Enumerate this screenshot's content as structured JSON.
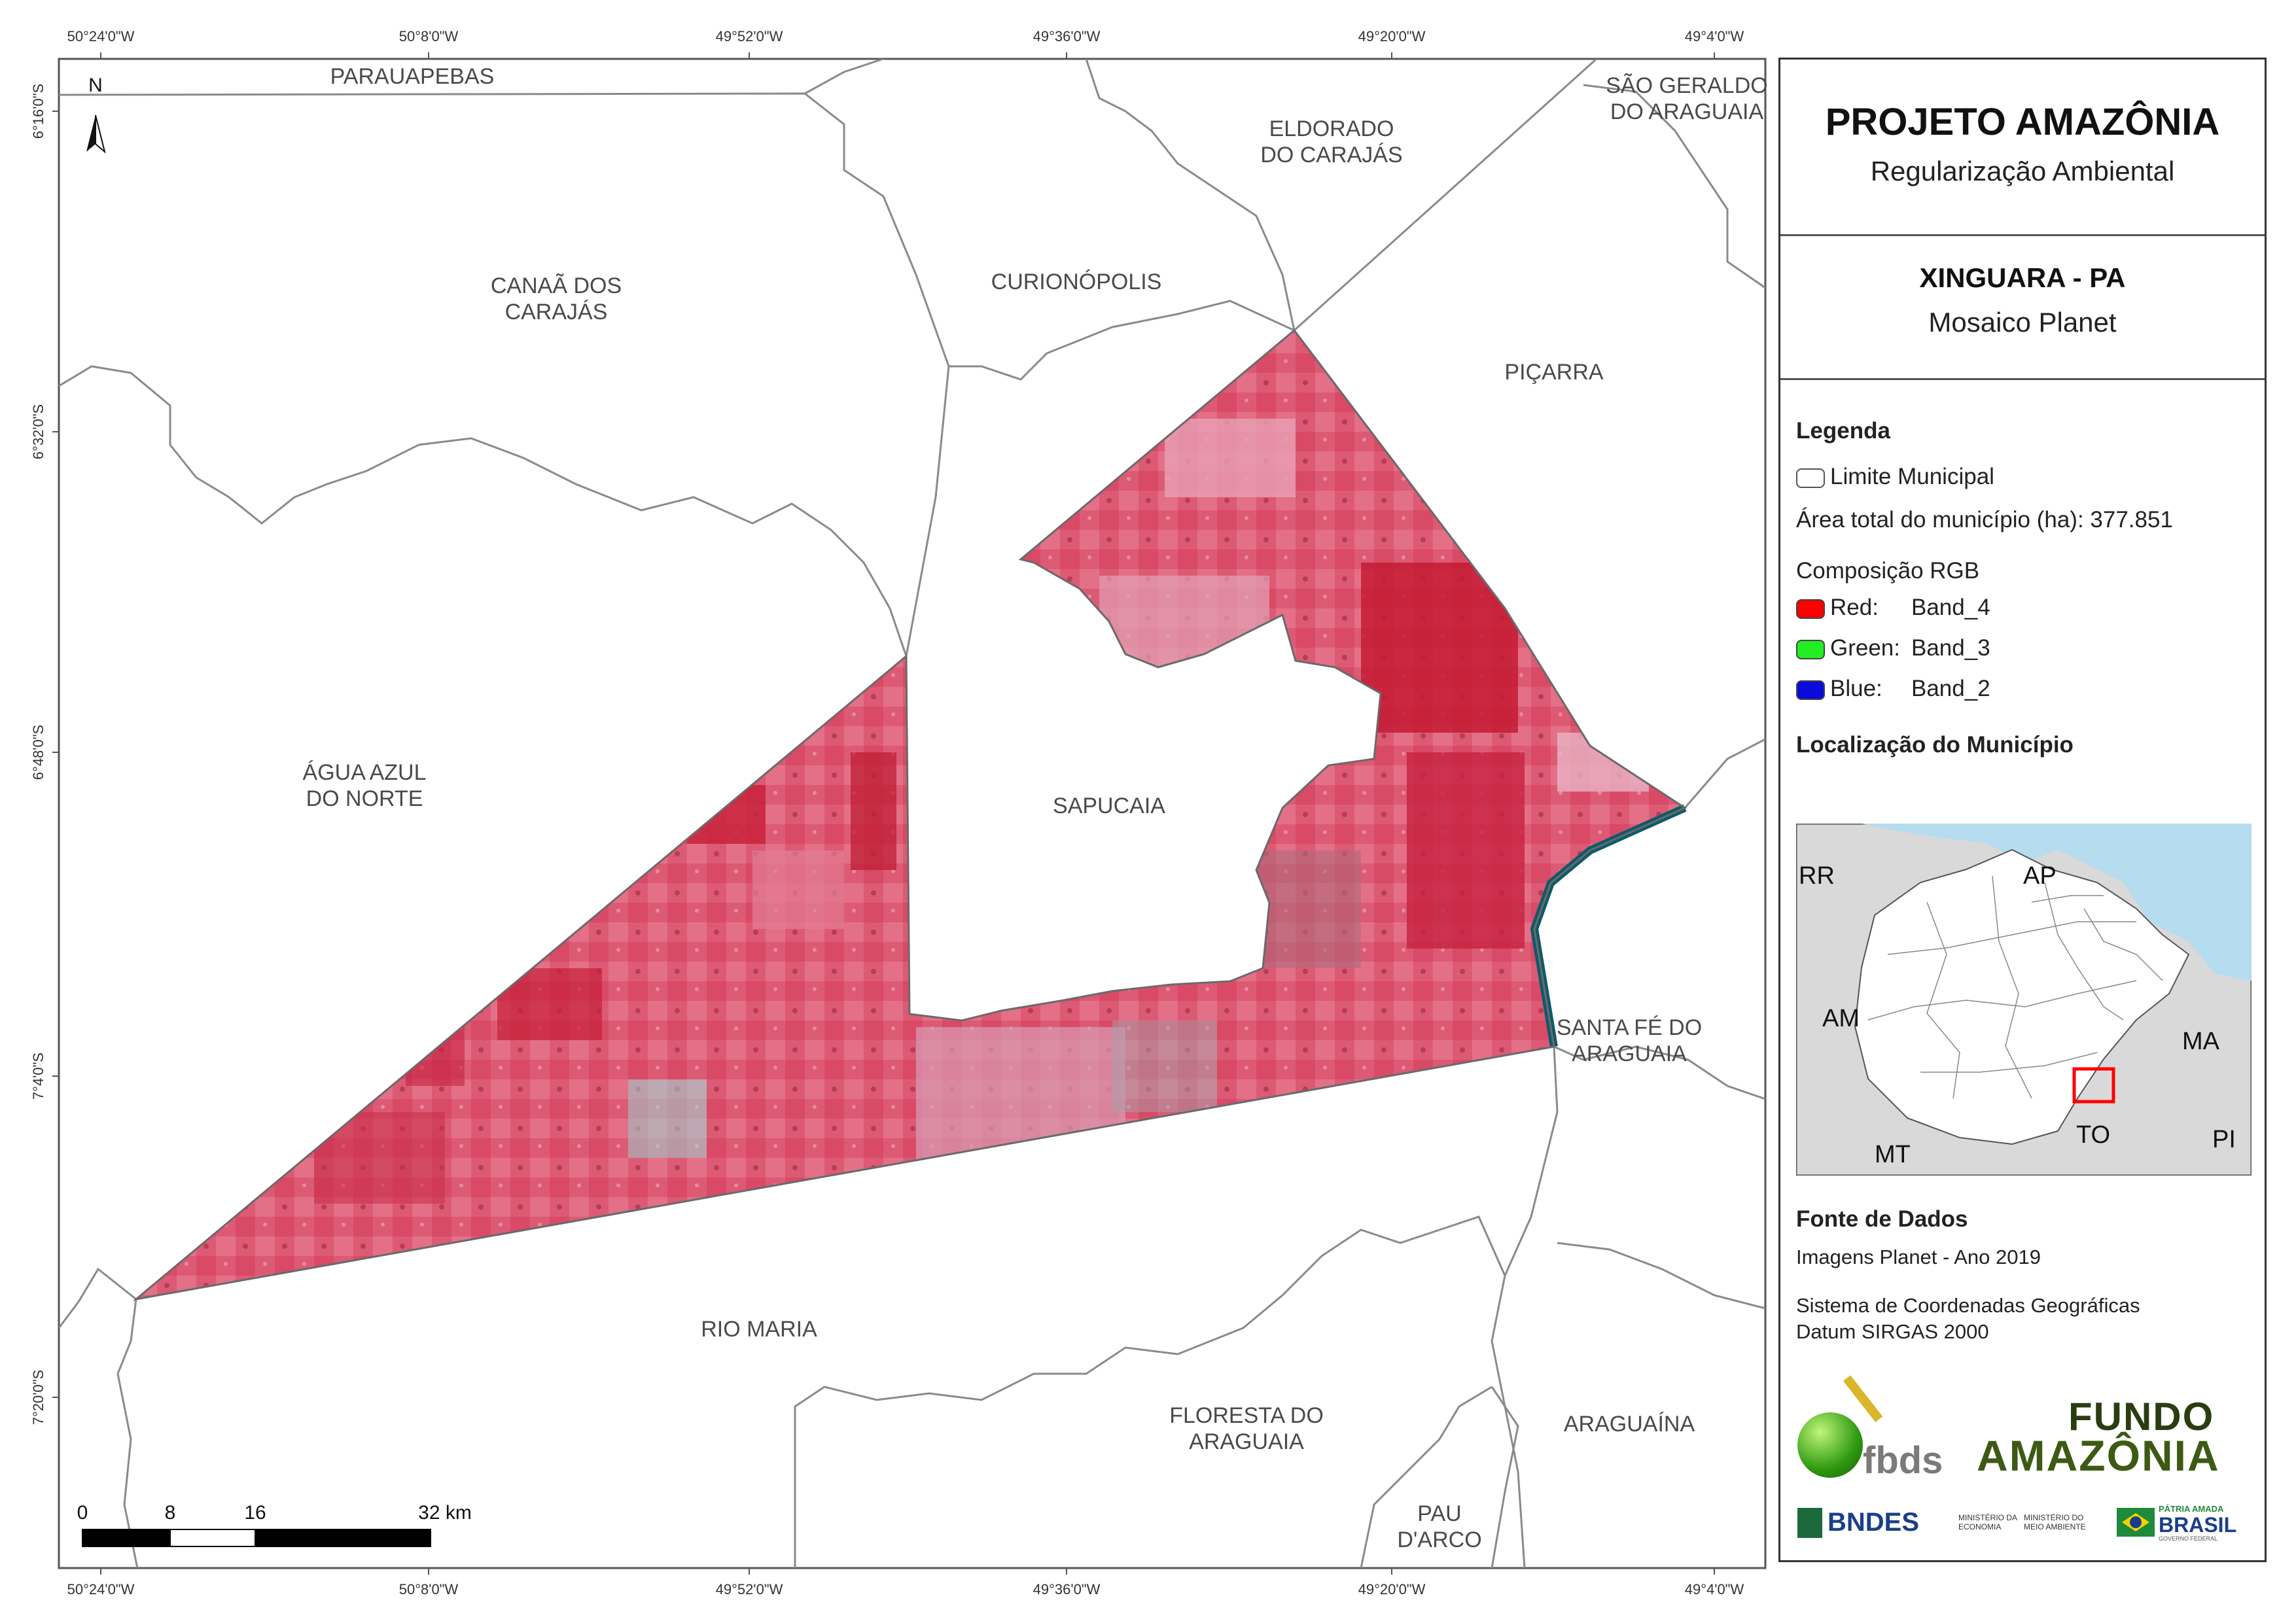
{
  "map": {
    "north_label": "N",
    "top_ticks": [
      "50°24'0\"W",
      "50°8'0\"W",
      "49°52'0\"W",
      "49°36'0\"W",
      "49°20'0\"W",
      "49°4'0\"W"
    ],
    "bottom_ticks": [
      "50°24'0\"W",
      "50°8'0\"W",
      "49°52'0\"W",
      "49°36'0\"W",
      "49°20'0\"W",
      "49°4'0\"W"
    ],
    "left_ticks": [
      "6°16'0\"S",
      "6°32'0\"S",
      "6°48'0\"S",
      "7°4'0\"S",
      "7°20'0\"S"
    ],
    "municipalities": {
      "parauapebas": "PARAUAPEBAS",
      "sao_geraldo_1": "SÃO GERALDO",
      "sao_geraldo_2": "DO ARAGUAIA",
      "eldorado_1": "ELDORADO",
      "eldorado_2": "DO CARAJÁS",
      "canaa_1": "CANAÃ DOS",
      "canaa_2": "CARAJÁS",
      "curionopolis": "CURIONÓPOLIS",
      "picarra": "PIÇARRA",
      "agua_azul_1": "ÁGUA AZUL",
      "agua_azul_2": "DO NORTE",
      "sapucaia": "SAPUCAIA",
      "santa_fe_1": "SANTA FÉ DO",
      "santa_fe_2": "ARAGUAIA",
      "rio_maria": "RIO MARIA",
      "floresta_1": "FLORESTA DO",
      "floresta_2": "ARAGUAIA",
      "araguaina": "ARAGUAÍNA",
      "pau_darco_1": "PAU",
      "pau_darco_2": "D'ARCO"
    },
    "scale": {
      "labels": [
        "0",
        "8",
        "16",
        "32 km"
      ]
    },
    "colors": {
      "mosaic": "#e0526a",
      "mosaic_dark": "#c8203a",
      "mosaic_light": "#e8a0b4",
      "border": "#777777",
      "water": "#0e5a6a"
    }
  },
  "panel": {
    "title": "PROJETO AMAZÔNIA",
    "subtitle": "Regularização Ambiental",
    "city": "XINGUARA - PA",
    "mosaic": "Mosaico Planet",
    "legend_heading": "Legenda",
    "limit_label": "Limite Municipal",
    "area_label": "Área total do município (ha): 377.851",
    "rgb_heading": "Composição RGB",
    "bands": [
      {
        "channel": "Red:",
        "band": "Band_4",
        "color": "#ff0000"
      },
      {
        "channel": "Green:",
        "band": "Band_3",
        "color": "#22ee22"
      },
      {
        "channel": "Blue:",
        "band": "Band_2",
        "color": "#0a0adc"
      }
    ],
    "location_heading": "Localização do Município",
    "inset_labels": [
      "RR",
      "AP",
      "AM",
      "MA",
      "MT",
      "TO",
      "PI"
    ],
    "inset_colors": {
      "sea": "#b5dcef",
      "land": "#d9d9d9",
      "state": "#ffffff",
      "highlight": "#ff0000"
    },
    "sources_heading": "Fonte de Dados",
    "source_line": "Imagens Planet - Ano 2019",
    "crs_line1": "Sistema de Coordenadas Geográficas",
    "crs_line2": "Datum SIRGAS 2000",
    "logos": {
      "fbds": "fbds",
      "fundo_1": "FUNDO",
      "fundo_2": "AMAZÔNIA",
      "bndes": "BNDES",
      "min_econ_1": "MINISTÉRIO DA",
      "min_econ_2": "ECONOMIA",
      "min_amb_1": "MINISTÉRIO DO",
      "min_amb_2": "MEIO AMBIENTE",
      "patria": "PÁTRIA AMADA",
      "brasil": "BRASIL",
      "gov": "GOVERNO FEDERAL"
    }
  }
}
